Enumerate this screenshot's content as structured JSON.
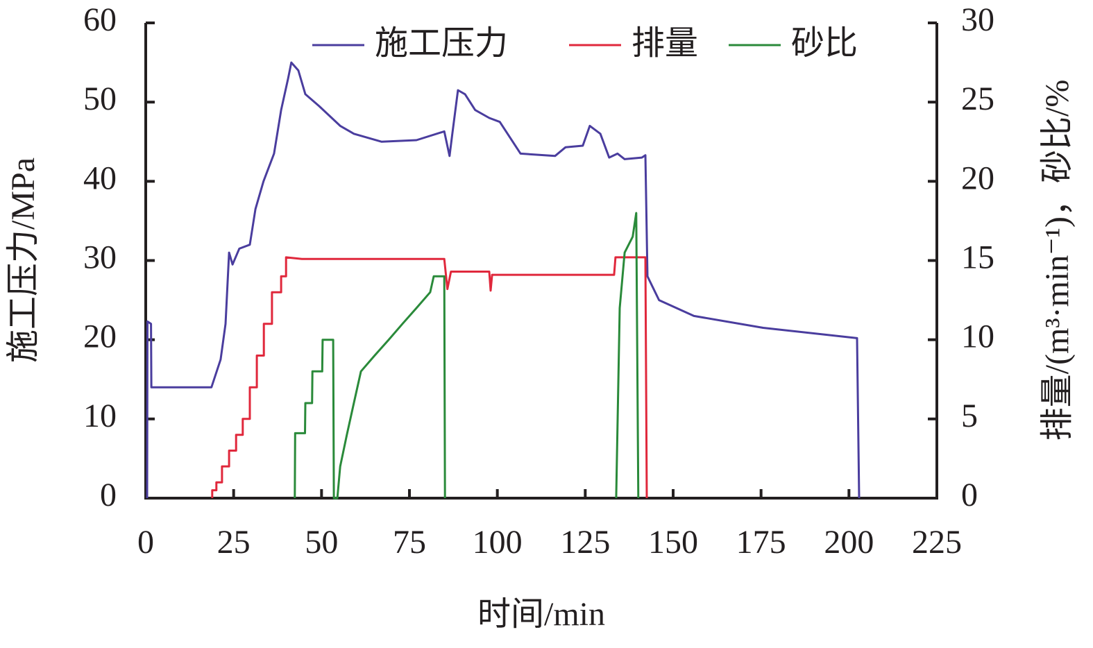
{
  "chart_data": {
    "type": "line",
    "xlabel": "时间/min",
    "ylabel": "施工压力/MPa",
    "y2label": "排量/(m³·min⁻¹)，砂比/%",
    "xlim": [
      0,
      225
    ],
    "xticks": [
      0,
      25,
      50,
      75,
      100,
      125,
      150,
      175,
      200,
      225
    ],
    "ylim": [
      0,
      60
    ],
    "yticks": [
      0,
      10,
      20,
      30,
      40,
      50,
      60
    ],
    "y2lim": [
      0,
      30
    ],
    "y2ticks": [
      0,
      5,
      10,
      15,
      20,
      25,
      30
    ],
    "legend": "top",
    "series": [
      {
        "name": "施工压力",
        "color": "#4a3d9e",
        "x": [
          0.4,
          0.5,
          1.5,
          1.6,
          18.7,
          21.3,
          22.7,
          23.7,
          24.7,
          26.6,
          29.6,
          31.2,
          33.5,
          36.5,
          38.5,
          40.5,
          41.4,
          43.4,
          45.4,
          49.3,
          55.3,
          59.2,
          67.1,
          77,
          84.9,
          86.4,
          87.2,
          88.8,
          90.8,
          93.7,
          97.7,
          100.7,
          106.6,
          116.4,
          119.4,
          124.3,
          126.3,
          129.3,
          131.8,
          134.2,
          136.2,
          141.1,
          142.1,
          142.7,
          146,
          155.9,
          175.6,
          202.3,
          202.9
        ],
        "values": [
          0,
          22.3,
          22,
          14,
          14,
          17.5,
          22,
          31,
          29.5,
          31.5,
          32,
          36.5,
          40,
          43.5,
          49,
          53,
          55,
          54,
          51,
          49.5,
          47,
          46,
          45,
          45.2,
          46.3,
          43.2,
          46,
          51.5,
          51,
          49,
          48,
          47.5,
          43.5,
          43.2,
          44.3,
          44.5,
          47,
          46,
          43,
          43.5,
          42.8,
          43,
          43.3,
          28,
          25,
          23,
          21.5,
          20.2,
          0
        ]
      },
      {
        "name": "排量",
        "color": "#e0283c",
        "axis": "y2",
        "x": [
          18.9,
          18.9,
          20.1,
          20.1,
          21.7,
          21.7,
          23.7,
          23.7,
          25.7,
          25.7,
          27.6,
          27.6,
          29.6,
          29.6,
          31.6,
          31.6,
          33.6,
          33.6,
          35.9,
          35.9,
          38.5,
          38.5,
          39.9,
          39.9,
          44.4,
          84.9,
          85.8,
          86.8,
          97.7,
          98.1,
          98.5,
          133.2,
          133.6,
          142.1,
          142.5
        ],
        "values": [
          0,
          0.5,
          0.5,
          1,
          1,
          2,
          2,
          3,
          3,
          4,
          4,
          5,
          5,
          7,
          7,
          9,
          9,
          11,
          11,
          13,
          13,
          14,
          14,
          15.2,
          15.1,
          15.1,
          13.2,
          14.3,
          14.3,
          13.1,
          14.1,
          14.1,
          15.2,
          15.2,
          0
        ]
      },
      {
        "name": "砂比",
        "color": "#2a8a3a",
        "axis": "y2",
        "x": [
          42.4,
          42.5,
          45.3,
          45.4,
          47.3,
          47.4,
          50.2,
          50.3,
          53.3,
          53.5,
          54.5,
          55.3,
          57.2,
          59.2,
          61.2,
          65.1,
          69.1,
          73,
          77,
          80.9,
          81.9,
          84.9,
          85.1,
          100,
          133.8,
          134.8,
          136.2,
          138.5,
          139.5,
          140.1
        ],
        "values": [
          0,
          4.1,
          4.1,
          6,
          6,
          8,
          8,
          10,
          10,
          0,
          0,
          2,
          4,
          6,
          8,
          9,
          10,
          11,
          12,
          13,
          14,
          14,
          0,
          null,
          0,
          12,
          15.5,
          16.5,
          18,
          0
        ]
      }
    ]
  }
}
